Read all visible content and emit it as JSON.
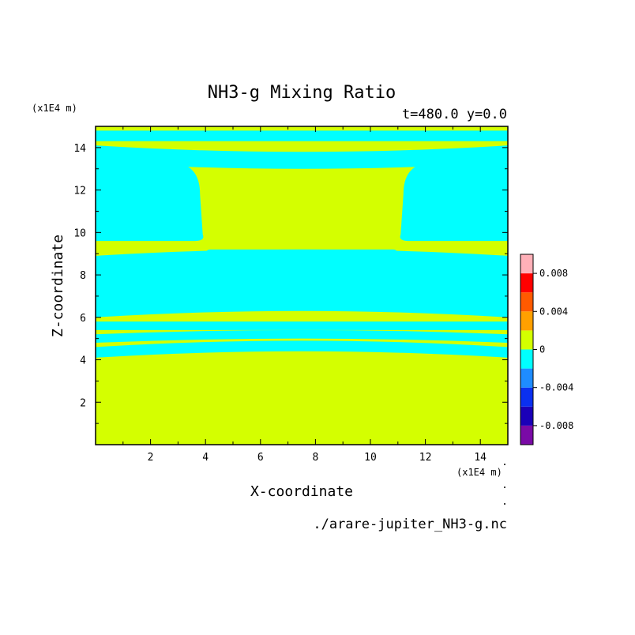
{
  "chart_data": {
    "type": "heatmap",
    "title": "NH3-g Mixing Ratio",
    "subtitle": "t=480.0 y=0.0",
    "xlabel": "X-coordinate",
    "ylabel": "Z-coordinate",
    "x_unit": "(x1E4 m)",
    "y_unit": "(x1E4 m)",
    "source": "./arare-jupiter_NH3-g.nc",
    "xlim": [
      0,
      15
    ],
    "ylim": [
      0,
      15
    ],
    "x_ticks": [
      2,
      4,
      6,
      8,
      10,
      12,
      14
    ],
    "y_ticks": [
      2,
      4,
      6,
      8,
      10,
      12,
      14
    ],
    "background_color": "#d4ff00",
    "region_color": "#00ffff",
    "bands": [
      {
        "z": [
          14.3,
          14.8
        ],
        "x_extent": "full",
        "value_level": "negative-small"
      },
      {
        "z": [
          13.3,
          14.1
        ],
        "x_extent": "full",
        "value_level": "negative-small",
        "sag_at_center": 0.3
      },
      {
        "z": [
          9.6,
          13.3
        ],
        "x_extent": "edges",
        "value_level": "negative-small",
        "inner_x": [
          3.9,
          11.1
        ]
      },
      {
        "z": [
          8.8,
          9.2
        ],
        "x_extent": "center",
        "value_level": "negative-small",
        "x": [
          4.0,
          11.0
        ]
      },
      {
        "z": [
          6.0,
          8.9
        ],
        "x_extent": "full",
        "value_level": "negative-small",
        "bulge_at_center": 0.3
      },
      {
        "z": [
          5.4,
          5.8
        ],
        "x_extent": "full",
        "value_level": "negative-small"
      },
      {
        "z": [
          4.8,
          5.2
        ],
        "x_extent": "full",
        "value_level": "negative-small",
        "bulge_at_center": 0.2
      },
      {
        "z": [
          4.1,
          4.6
        ],
        "x_extent": "full",
        "value_level": "negative-small",
        "bulge_at_center": 0.3
      }
    ],
    "colorbar": {
      "levels": [
        -0.01,
        -0.008,
        -0.006,
        -0.004,
        -0.002,
        0,
        0.002,
        0.004,
        0.006,
        0.008,
        0.01
      ],
      "colors": [
        "#7a0aa6",
        "#1a00b8",
        "#0a30f0",
        "#1e8cff",
        "#00ffff",
        "#d4ff00",
        "#ffa000",
        "#ff5a00",
        "#ff0000",
        "#ffb0b8"
      ],
      "tick_labels": [
        "0.008",
        "0.004",
        "0",
        "-0.004",
        "-0.008"
      ]
    }
  }
}
